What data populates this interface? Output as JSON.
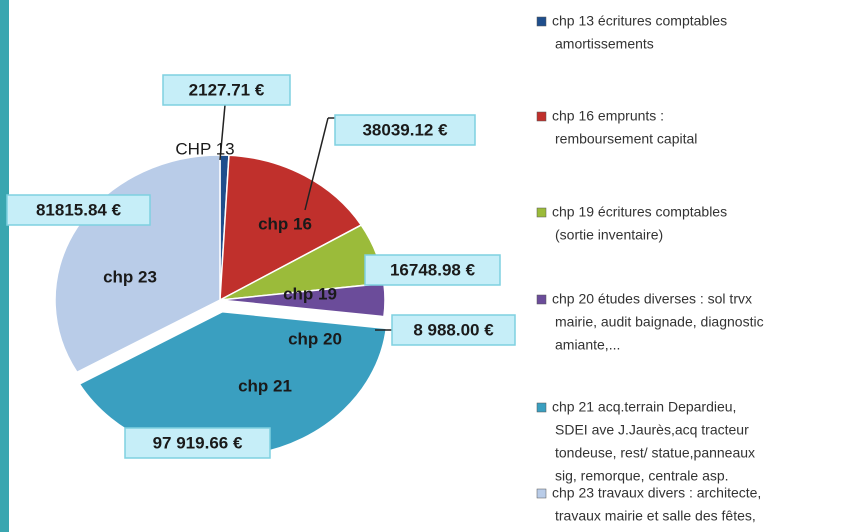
{
  "chart_data": {
    "type": "pie",
    "categories": [
      "CHP 13",
      "chp 16",
      "chp 19",
      "chp 20",
      "chp 21",
      "chp 23"
    ],
    "values": [
      2127.71,
      38039.12,
      16748.98,
      8988.0,
      97919.66,
      81815.84
    ],
    "value_labels": [
      "2127.71 €",
      "38039.12 €",
      "16748.98 €",
      "8 988.00 €",
      "97 919.66 €",
      "81815.84 €"
    ],
    "colors": [
      "#1f4e8c",
      "#c0302c",
      "#9bbb3a",
      "#6b4c9a",
      "#3a9fc0",
      "#b9cce8"
    ],
    "legend": [
      [
        "chp 13 écritures comptables",
        "amortissements"
      ],
      [
        "chp 16 emprunts :",
        "remboursement capital"
      ],
      [
        "chp 19 écritures comptables",
        "(sortie inventaire)"
      ],
      [
        "chp 20 études diverses : sol trvx",
        "mairie, audit baignade, diagnostic",
        "amiante,..."
      ],
      [
        "chp 21  acq.terrain Depardieu,",
        "SDEI ave J.Jaurès,acq tracteur",
        "tondeuse, rest/ statue,panneaux",
        "sig, remorque, centrale asp."
      ],
      [
        "chp 23 travaux  divers : architecte,",
        "travaux mairie et salle des fêtes,"
      ]
    ]
  }
}
